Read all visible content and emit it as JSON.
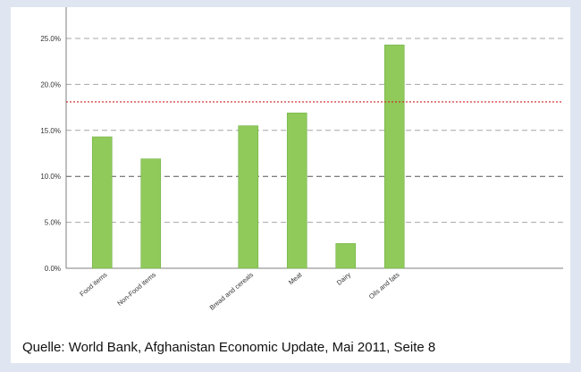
{
  "chart_data": {
    "type": "bar",
    "categories": [
      "Food items",
      "Non-Food items",
      "",
      "Bread and cereals",
      "Meat",
      "Dairy",
      "Oils and fats"
    ],
    "values": [
      14.3,
      11.9,
      null,
      15.5,
      16.9,
      2.7,
      24.3
    ],
    "value_format": "percent_1dp",
    "ylim": [
      0,
      25
    ],
    "yticks": [
      0,
      5,
      10,
      15,
      20,
      25
    ],
    "ytick_labels": [
      "0.0%",
      "5.0%",
      "10.0%",
      "15.0%",
      "20.0%",
      "25.0%"
    ],
    "reference_line": 18.1,
    "grid": true,
    "title": "",
    "xlabel": "",
    "ylabel": ""
  },
  "colors": {
    "bar_fill": "#8fca5b",
    "bar_stroke": "#74b147",
    "grid": "#a6a6a6",
    "grid_dark": "#555555",
    "reference_line": "#cc2222",
    "axis": "#7f7f7f"
  },
  "source": "Quelle: World Bank, Afghanistan Economic Update, Mai 2011, Seite 8"
}
